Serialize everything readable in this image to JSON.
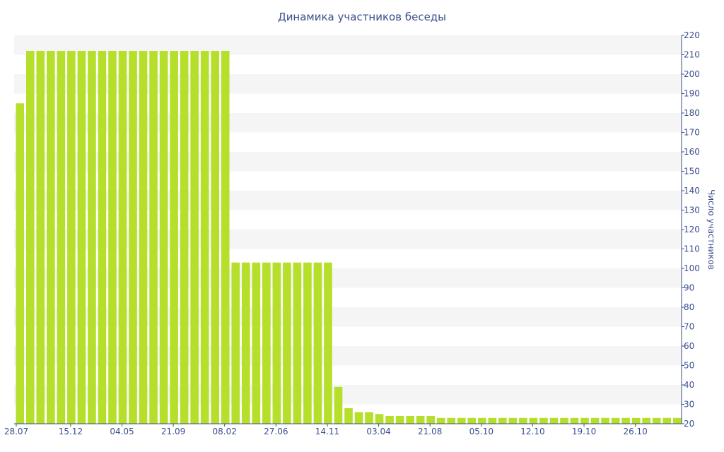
{
  "chart_data": {
    "type": "bar",
    "title": "Динамика участников беседы",
    "xlabel": "",
    "ylabel": "Число участников",
    "ylim": [
      20,
      220
    ],
    "y_tick_step": 10,
    "y_axis_side": "right",
    "grid": "alternating horizontal bands",
    "x_tick_labels": [
      {
        "label": "28.07",
        "index": 0
      },
      {
        "label": "15.12",
        "index": 5
      },
      {
        "label": "04.05",
        "index": 10
      },
      {
        "label": "21.09",
        "index": 15
      },
      {
        "label": "08.02",
        "index": 20
      },
      {
        "label": "27.06",
        "index": 25
      },
      {
        "label": "14.11",
        "index": 30
      },
      {
        "label": "03.04",
        "index": 35
      },
      {
        "label": "21.08",
        "index": 40
      },
      {
        "label": "05.10",
        "index": 45
      },
      {
        "label": "12.10",
        "index": 50
      },
      {
        "label": "19.10",
        "index": 55
      },
      {
        "label": "26.10",
        "index": 60
      }
    ],
    "values": [
      185,
      212,
      212,
      212,
      212,
      212,
      212,
      212,
      212,
      212,
      212,
      212,
      212,
      212,
      212,
      212,
      212,
      212,
      212,
      212,
      212,
      103,
      103,
      103,
      103,
      103,
      103,
      103,
      103,
      103,
      103,
      39,
      28,
      26,
      26,
      25,
      24,
      24,
      24,
      24,
      24,
      23,
      23,
      23,
      23,
      23,
      23,
      23,
      23,
      23,
      23,
      23,
      23,
      23,
      23,
      23,
      23,
      23,
      23,
      23,
      23,
      23,
      23,
      23,
      23
    ],
    "colors": {
      "bar": "#b5df2b",
      "band": "#f5f5f5",
      "text": "#3a4f8c",
      "axis": "#3a4f8c"
    }
  }
}
